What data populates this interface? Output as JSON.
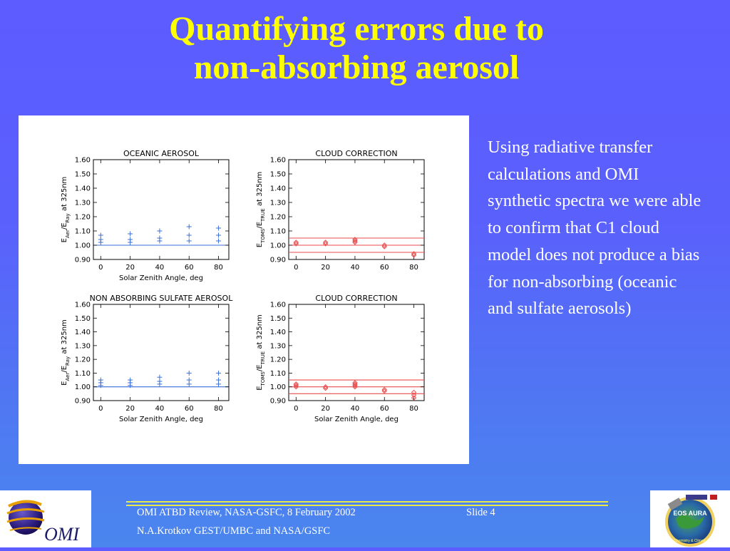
{
  "slide": {
    "title_line1": "Quantifying errors due to",
    "title_line2": "non-absorbing aerosol",
    "body_text": "Using radiative transfer calculations and OMI synthetic spectra we were able to confirm that C1 cloud model does not produce a bias for non-absorbing (oceanic and sulfate aerosols)",
    "footer_line1": "OMI ATBD Review, NASA-GSFC, 8 February 2002",
    "footer_slide": "Slide 4",
    "footer_line2": "N.A.Krotkov GEST/UMBC and NASA/GSFC",
    "logo_left_text": "OMI",
    "logo_right_text": "EOS AURA",
    "logo_right_subtext": "Chemistry & Climate"
  },
  "colors": {
    "title": "#ffff00",
    "text": "#ffffff",
    "footer_rule": "#e8e84a",
    "plus_markers": "#3a6fd8",
    "reference_line": "#3a6fd8",
    "diamond_markers": "#e84c4c",
    "band_lines": "#e84c4c"
  },
  "chart_data": [
    {
      "type": "scatter",
      "title": "OCEANIC AEROSOL",
      "xlabel": "Solar Zenith Angle, deg",
      "ylabel_main": "E",
      "ylabel_sub1": "Aer",
      "ylabel_mid": "/E",
      "ylabel_sub2": "Ray",
      "ylabel_tail": " at 325nm",
      "xlim": [
        -5,
        87
      ],
      "ylim": [
        0.9,
        1.6
      ],
      "x_ticks": [
        0,
        20,
        40,
        60,
        80
      ],
      "y_ticks": [
        0.9,
        1.0,
        1.1,
        1.2,
        1.3,
        1.4,
        1.5,
        1.6
      ],
      "y_tick_labels": [
        "0.90",
        "1.00",
        "1.10",
        "1.20",
        "1.30",
        "1.40",
        "1.50",
        "1.60"
      ],
      "marker": "plus",
      "points": [
        {
          "x": 0,
          "y": 1.02
        },
        {
          "x": 0,
          "y": 1.04
        },
        {
          "x": 0,
          "y": 1.07
        },
        {
          "x": 20,
          "y": 1.02
        },
        {
          "x": 20,
          "y": 1.04
        },
        {
          "x": 20,
          "y": 1.08
        },
        {
          "x": 40,
          "y": 1.03
        },
        {
          "x": 40,
          "y": 1.05
        },
        {
          "x": 40,
          "y": 1.1
        },
        {
          "x": 60,
          "y": 1.03
        },
        {
          "x": 60,
          "y": 1.07
        },
        {
          "x": 60,
          "y": 1.13
        },
        {
          "x": 80,
          "y": 1.03
        },
        {
          "x": 80,
          "y": 1.07
        },
        {
          "x": 80,
          "y": 1.12
        }
      ],
      "reference_lines": [
        1.0
      ],
      "grid": false
    },
    {
      "type": "scatter",
      "title": "CLOUD CORRECTION",
      "xlabel": "",
      "ylabel_main": "E",
      "ylabel_sub1": "TOMS",
      "ylabel_mid": "/E",
      "ylabel_sub2": "TRUE",
      "ylabel_tail": " at 325nm",
      "xlim": [
        -5,
        87
      ],
      "ylim": [
        0.9,
        1.6
      ],
      "x_ticks": [
        0,
        20,
        40,
        60,
        80
      ],
      "y_ticks": [
        0.9,
        1.0,
        1.1,
        1.2,
        1.3,
        1.4,
        1.5,
        1.6
      ],
      "y_tick_labels": [
        "0.90",
        "1.00",
        "1.10",
        "1.20",
        "1.30",
        "1.40",
        "1.50",
        "1.60"
      ],
      "marker": "diamond",
      "points": [
        {
          "x": 0,
          "y": 1.01
        },
        {
          "x": 0,
          "y": 1.02
        },
        {
          "x": 20,
          "y": 1.01
        },
        {
          "x": 20,
          "y": 1.02
        },
        {
          "x": 40,
          "y": 1.02
        },
        {
          "x": 40,
          "y": 1.03
        },
        {
          "x": 40,
          "y": 1.04
        },
        {
          "x": 60,
          "y": 0.99
        },
        {
          "x": 60,
          "y": 1.0
        },
        {
          "x": 80,
          "y": 0.93
        },
        {
          "x": 80,
          "y": 0.94
        }
      ],
      "reference_lines": [
        0.95,
        1.0,
        1.05
      ],
      "grid": false
    },
    {
      "type": "scatter",
      "title": "NON ABSORBING SULFATE AEROSOL",
      "xlabel": "Solar Zenith Angle, deg",
      "ylabel_main": "E",
      "ylabel_sub1": "Aer",
      "ylabel_mid": "/E",
      "ylabel_sub2": "Ray",
      "ylabel_tail": " at 325nm",
      "xlim": [
        -5,
        87
      ],
      "ylim": [
        0.9,
        1.6
      ],
      "x_ticks": [
        0,
        20,
        40,
        60,
        80
      ],
      "y_ticks": [
        0.9,
        1.0,
        1.1,
        1.2,
        1.3,
        1.4,
        1.5,
        1.6
      ],
      "y_tick_labels": [
        "0.90",
        "1.00",
        "1.10",
        "1.20",
        "1.30",
        "1.40",
        "1.50",
        "1.60"
      ],
      "marker": "plus",
      "points": [
        {
          "x": 0,
          "y": 1.01
        },
        {
          "x": 0,
          "y": 1.03
        },
        {
          "x": 0,
          "y": 1.05
        },
        {
          "x": 20,
          "y": 1.01
        },
        {
          "x": 20,
          "y": 1.03
        },
        {
          "x": 20,
          "y": 1.05
        },
        {
          "x": 40,
          "y": 1.02
        },
        {
          "x": 40,
          "y": 1.04
        },
        {
          "x": 40,
          "y": 1.07
        },
        {
          "x": 60,
          "y": 1.02
        },
        {
          "x": 60,
          "y": 1.05
        },
        {
          "x": 60,
          "y": 1.1
        },
        {
          "x": 80,
          "y": 1.02
        },
        {
          "x": 80,
          "y": 1.05
        },
        {
          "x": 80,
          "y": 1.1
        }
      ],
      "reference_lines": [
        1.0
      ],
      "grid": false
    },
    {
      "type": "scatter",
      "title": "CLOUD CORRECTION",
      "xlabel": "Solar Zenith Angle, deg",
      "ylabel_main": "E",
      "ylabel_sub1": "TOMS",
      "ylabel_mid": "/E",
      "ylabel_sub2": "TRUE",
      "ylabel_tail": " at 325nm",
      "xlim": [
        -5,
        87
      ],
      "ylim": [
        0.9,
        1.6
      ],
      "x_ticks": [
        0,
        20,
        40,
        60,
        80
      ],
      "y_ticks": [
        0.9,
        1.0,
        1.1,
        1.2,
        1.3,
        1.4,
        1.5,
        1.6
      ],
      "y_tick_labels": [
        "0.90",
        "1.00",
        "1.10",
        "1.20",
        "1.30",
        "1.40",
        "1.50",
        "1.60"
      ],
      "marker": "diamond",
      "points": [
        {
          "x": 0,
          "y": 1.0
        },
        {
          "x": 0,
          "y": 1.01
        },
        {
          "x": 0,
          "y": 1.02
        },
        {
          "x": 20,
          "y": 0.99
        },
        {
          "x": 20,
          "y": 1.0
        },
        {
          "x": 40,
          "y": 1.0
        },
        {
          "x": 40,
          "y": 1.01
        },
        {
          "x": 40,
          "y": 1.02
        },
        {
          "x": 40,
          "y": 1.03
        },
        {
          "x": 60,
          "y": 0.97
        },
        {
          "x": 60,
          "y": 0.98
        },
        {
          "x": 80,
          "y": 0.92
        },
        {
          "x": 80,
          "y": 0.94
        },
        {
          "x": 80,
          "y": 0.96
        }
      ],
      "reference_lines": [
        0.95,
        1.0,
        1.05
      ],
      "grid": false
    }
  ]
}
